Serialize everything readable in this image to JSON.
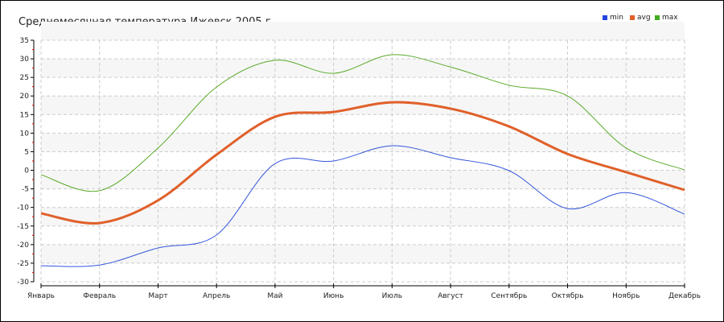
{
  "chart_data": {
    "type": "line",
    "title": "Среднемесячная температура Ижевск  2005 г.",
    "categories": [
      "Январь",
      "Февраль",
      "Март",
      "Апрель",
      "Май",
      "Июнь",
      "Июль",
      "Август",
      "Сентябрь",
      "Октябрь",
      "Ноябрь",
      "Декабрь"
    ],
    "ylim": [
      -30,
      35
    ],
    "yticks": [
      35,
      30,
      25,
      20,
      15,
      10,
      5,
      0,
      -5,
      -10,
      -15,
      -20,
      -25,
      -30
    ],
    "grid": true,
    "legend_position": "top-right",
    "series": [
      {
        "name": "min",
        "color": "#3355dd",
        "values": [
          -25.7,
          -25.5,
          -20.9,
          -17.4,
          1.8,
          2.5,
          6.6,
          3.4,
          -0.1,
          -10.3,
          -6.0,
          -11.8
        ]
      },
      {
        "name": "avg",
        "color": "#e0602a",
        "values": [
          -11.6,
          -14.2,
          -8.1,
          4.2,
          14.4,
          15.7,
          18.3,
          16.6,
          11.8,
          4.4,
          -0.5,
          -5.3
        ]
      },
      {
        "name": "max",
        "color": "#5aaa2a",
        "values": [
          -1.2,
          -5.5,
          6.0,
          22.4,
          29.6,
          26.1,
          31.1,
          27.8,
          22.9,
          20.0,
          6.0,
          0.1
        ]
      }
    ]
  }
}
